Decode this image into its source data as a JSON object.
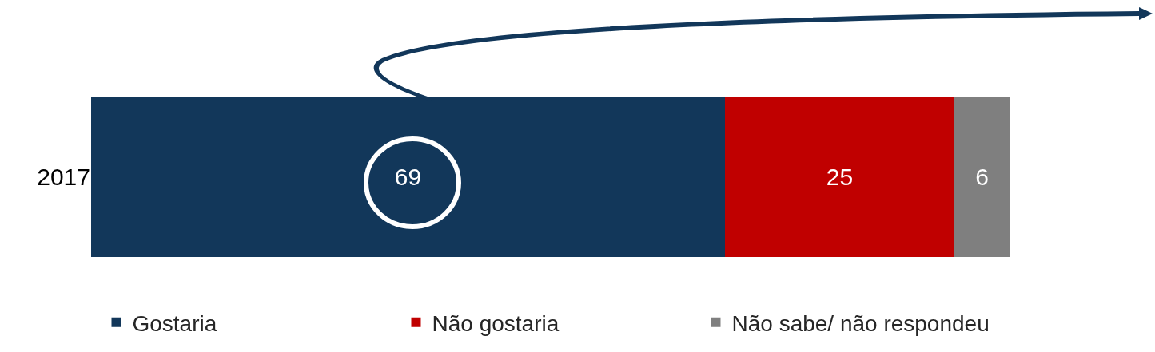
{
  "chart_data": {
    "type": "bar",
    "orientation": "horizontal",
    "stacked": true,
    "categories": [
      "2017"
    ],
    "series": [
      {
        "name": "Gostaria",
        "color": "#12375a",
        "values": [
          69
        ]
      },
      {
        "name": "Não gostaria",
        "color": "#c00000",
        "values": [
          25
        ]
      },
      {
        "name": "Não sabe/ não respondeu",
        "color": "#7f7f7f",
        "values": [
          6
        ]
      }
    ],
    "xlim": [
      0,
      100
    ],
    "data_labels": true,
    "legend": "bottom",
    "tick_labels": "y"
  }
}
